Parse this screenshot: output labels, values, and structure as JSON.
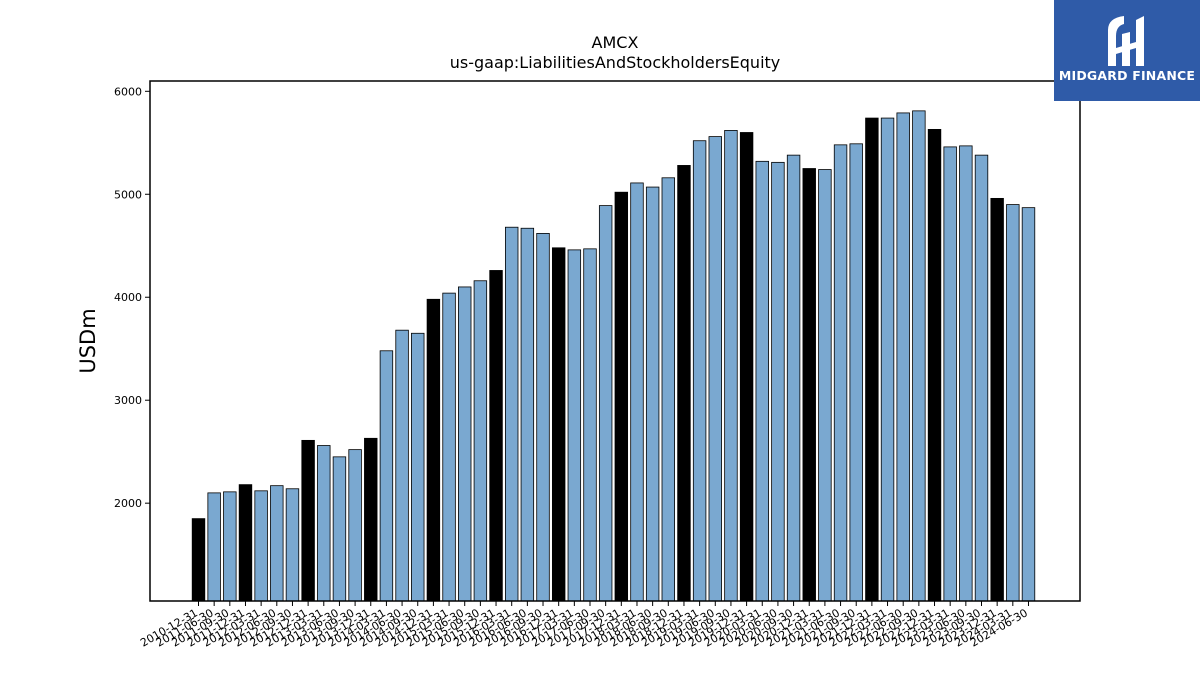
{
  "chart_data": {
    "type": "bar",
    "title": "AMCX",
    "subtitle": "us-gaap:LiabilitiesAndStockholdersEquity",
    "xlabel": "",
    "ylabel": "USDm",
    "ylim": [
      1050,
      6100
    ],
    "yticks": [
      2000,
      3000,
      4000,
      5000,
      6000
    ],
    "grid": false,
    "colors": {
      "annual": "#000000",
      "quarterly": "#7aa8d0",
      "edge": "#000000"
    },
    "categories": [
      "2010-12-31",
      "2011-06-30",
      "2011-09-30",
      "2011-12-31",
      "2012-03-31",
      "2012-06-30",
      "2012-09-30",
      "2012-12-31",
      "2013-03-31",
      "2013-06-30",
      "2013-09-30",
      "2013-12-31",
      "2014-03-31",
      "2014-06-30",
      "2014-09-30",
      "2014-12-31",
      "2015-03-31",
      "2015-06-30",
      "2015-09-30",
      "2015-12-31",
      "2016-03-31",
      "2016-06-30",
      "2016-09-30",
      "2016-12-31",
      "2017-03-31",
      "2017-06-30",
      "2017-09-30",
      "2017-12-31",
      "2018-03-31",
      "2018-06-30",
      "2018-09-30",
      "2018-12-31",
      "2019-03-31",
      "2019-06-30",
      "2019-09-30",
      "2019-12-31",
      "2020-03-31",
      "2020-06-30",
      "2020-09-30",
      "2020-12-31",
      "2021-03-31",
      "2021-06-30",
      "2021-09-30",
      "2021-12-31",
      "2022-03-31",
      "2022-06-30",
      "2022-09-30",
      "2022-12-31",
      "2023-03-31",
      "2023-06-30",
      "2023-09-30",
      "2023-12-31",
      "2024-03-31",
      "2024-06-30"
    ],
    "values": [
      1850,
      2100,
      2110,
      2180,
      2120,
      2170,
      2140,
      2610,
      2560,
      2450,
      2520,
      2630,
      3480,
      3680,
      3650,
      3980,
      4040,
      4100,
      4160,
      4260,
      4680,
      4670,
      4620,
      4480,
      4460,
      4470,
      4890,
      5020,
      5110,
      5070,
      5160,
      5280,
      5520,
      5560,
      5620,
      5600,
      5320,
      5310,
      5380,
      5250,
      5240,
      5480,
      5490,
      5740,
      5740,
      5790,
      5810,
      5630,
      5460,
      5470,
      5380,
      4960,
      4900,
      4870
    ],
    "annual": [
      true,
      false,
      false,
      true,
      false,
      false,
      false,
      true,
      false,
      false,
      false,
      true,
      false,
      false,
      false,
      true,
      false,
      false,
      false,
      true,
      false,
      false,
      false,
      true,
      false,
      false,
      false,
      true,
      false,
      false,
      false,
      true,
      false,
      false,
      false,
      true,
      false,
      false,
      false,
      true,
      false,
      false,
      false,
      true,
      false,
      false,
      false,
      true,
      false,
      false,
      false,
      true,
      false,
      false
    ]
  },
  "logo": {
    "text": "MIDGARD FINANCE",
    "background": "#2f5ba8",
    "icon": "midgard-logo-icon"
  }
}
